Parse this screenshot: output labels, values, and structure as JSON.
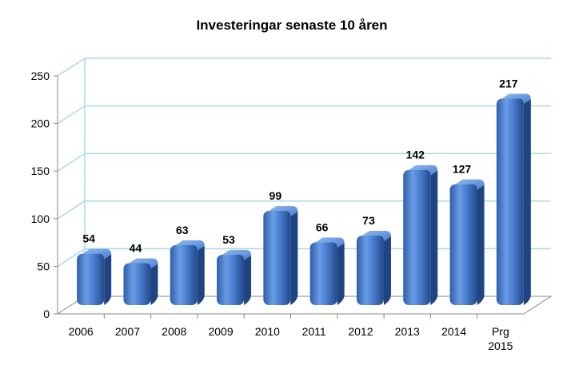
{
  "chart_data": {
    "type": "bar",
    "title": "Investeringar senaste 10 åren",
    "categories": [
      "2006",
      "2007",
      "2008",
      "2009",
      "2010",
      "2011",
      "2012",
      "2013",
      "2014",
      "Prg 2015"
    ],
    "values": [
      54,
      44,
      63,
      53,
      99,
      66,
      73,
      142,
      127,
      217
    ],
    "ylim": [
      0,
      250
    ],
    "yticks": [
      0,
      50,
      100,
      150,
      200,
      250
    ],
    "grid": true,
    "legend": "none",
    "style": "3d-cylinder",
    "colors": {
      "bar": "#4a7fd0",
      "grid": "#a8d8e8",
      "axis": "#888888"
    }
  }
}
